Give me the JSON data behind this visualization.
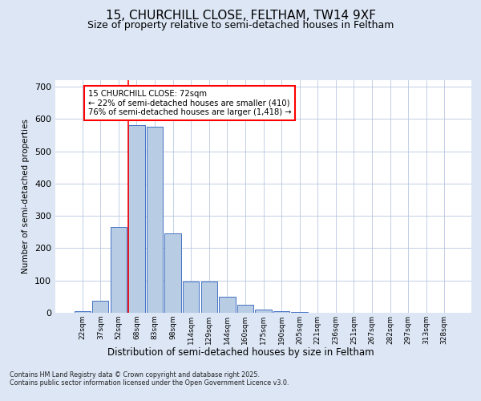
{
  "title1": "15, CHURCHILL CLOSE, FELTHAM, TW14 9XF",
  "title2": "Size of property relative to semi-detached houses in Feltham",
  "xlabel": "Distribution of semi-detached houses by size in Feltham",
  "ylabel": "Number of semi-detached properties",
  "bar_labels": [
    "22sqm",
    "37sqm",
    "52sqm",
    "68sqm",
    "83sqm",
    "98sqm",
    "114sqm",
    "129sqm",
    "144sqm",
    "160sqm",
    "175sqm",
    "190sqm",
    "205sqm",
    "221sqm",
    "236sqm",
    "251sqm",
    "267sqm",
    "282sqm",
    "297sqm",
    "313sqm",
    "328sqm"
  ],
  "bar_values": [
    5,
    37,
    265,
    580,
    575,
    245,
    97,
    97,
    50,
    25,
    10,
    5,
    2,
    1,
    0,
    0,
    0,
    0,
    0,
    0,
    0
  ],
  "bar_color": "#b8cce4",
  "bar_edge_color": "#4472c4",
  "vline_color": "red",
  "annotation_text": "15 CHURCHILL CLOSE: 72sqm\n← 22% of semi-detached houses are smaller (410)\n76% of semi-detached houses are larger (1,418) →",
  "annotation_box_color": "white",
  "annotation_box_edge": "red",
  "ylim": [
    0,
    720
  ],
  "yticks": [
    0,
    100,
    200,
    300,
    400,
    500,
    600,
    700
  ],
  "footer": "Contains HM Land Registry data © Crown copyright and database right 2025.\nContains public sector information licensed under the Open Government Licence v3.0.",
  "bg_color": "#dce6f5",
  "plot_bg_color": "white",
  "title1_fontsize": 11,
  "title2_fontsize": 9,
  "grid_color": "#b8c8e0"
}
